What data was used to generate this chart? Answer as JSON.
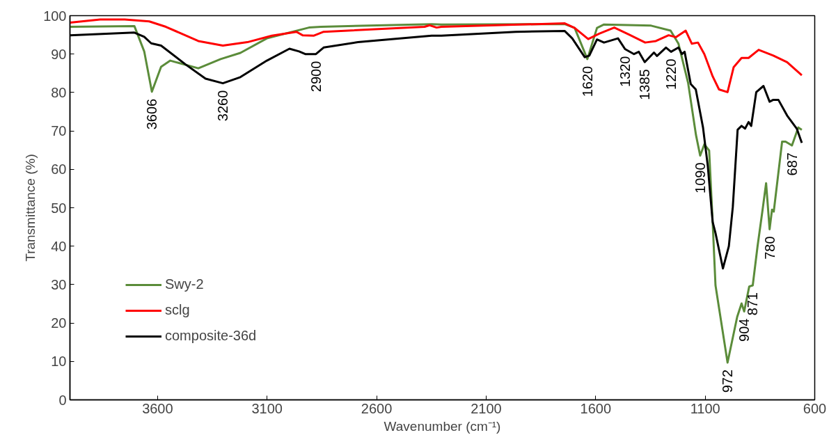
{
  "chart_data": {
    "type": "line",
    "xlabel": "Wavenumber (cm⁻¹)",
    "ylabel": "Transmittance (%)",
    "xlim": [
      4000,
      600
    ],
    "xticks": [
      3600,
      3100,
      2600,
      2100,
      1600,
      1100,
      600
    ],
    "ylim": [
      0,
      100
    ],
    "yticks": [
      0,
      10,
      20,
      30,
      40,
      50,
      60,
      70,
      80,
      90,
      100
    ],
    "grid": false,
    "legend": "bottom left",
    "marker": "none",
    "line_style": "solid",
    "series": [
      {
        "name": "Swy-2",
        "color": "#5b8c3a",
        "x": [
          4000,
          3706,
          3661,
          3626,
          3584,
          3542,
          3414,
          3312,
          3222,
          3101,
          2909,
          2854,
          2349,
          2304,
          1741,
          1696,
          1638,
          1594,
          1562,
          1347,
          1258,
          1222,
          1178,
          1142,
          1123,
          1104,
          1082,
          1066,
          1053,
          998,
          954,
          934,
          922,
          899,
          883,
          861,
          838,
          822,
          806,
          795,
          787,
          749,
          733,
          704,
          675,
          659
        ],
        "values": [
          97.1,
          97.3,
          90.7,
          80.2,
          86.7,
          88.3,
          86.3,
          88.7,
          90.3,
          94.1,
          96.9,
          97.1,
          97.8,
          97.7,
          97.8,
          96.8,
          88.7,
          96.8,
          97.7,
          97.4,
          96.1,
          92.7,
          82.5,
          68.9,
          63.6,
          66.5,
          64.9,
          46.3,
          29.8,
          9.7,
          21.6,
          25.1,
          23.0,
          29.5,
          29.8,
          40.0,
          49.5,
          56.4,
          44.4,
          49.5,
          49.0,
          67.2,
          67.2,
          66.2,
          70.9,
          70.3
        ]
      },
      {
        "name": "sclg",
        "color": "#ff0000",
        "x": [
          4000,
          3862,
          3750,
          3638,
          3562,
          3414,
          3302,
          3190,
          3078,
          2966,
          2938,
          2886,
          2842,
          2381,
          2358,
          2326,
          2304,
          1741,
          1696,
          1634,
          1584,
          1515,
          1448,
          1374,
          1325,
          1267,
          1234,
          1189,
          1161,
          1133,
          1104,
          1066,
          1037,
          998,
          970,
          934,
          902,
          856,
          789,
          726,
          659
        ],
        "values": [
          98.2,
          99.0,
          99.0,
          98.5,
          97.1,
          93.4,
          92.2,
          93.1,
          94.8,
          95.8,
          94.9,
          94.8,
          95.8,
          97.1,
          97.5,
          96.9,
          97.1,
          98.0,
          96.8,
          93.9,
          95.3,
          96.9,
          95.1,
          93.0,
          93.4,
          94.9,
          94.4,
          96.1,
          92.7,
          93.0,
          90.0,
          84.2,
          80.8,
          80.1,
          86.6,
          89.0,
          89.0,
          91.1,
          89.6,
          87.9,
          84.5
        ]
      },
      {
        "name": "composite-36d",
        "color": "#000000",
        "x": [
          4000,
          3706,
          3661,
          3629,
          3584,
          3472,
          3381,
          3302,
          3222,
          3101,
          2998,
          2954,
          2926,
          2877,
          2842,
          2685,
          2349,
          2304,
          1965,
          1741,
          1707,
          1650,
          1629,
          1594,
          1562,
          1498,
          1466,
          1425,
          1403,
          1376,
          1334,
          1320,
          1279,
          1256,
          1222,
          1206,
          1194,
          1166,
          1143,
          1110,
          1088,
          1066,
          1053,
          1019,
          992,
          974,
          952,
          934,
          918,
          902,
          890,
          867,
          834,
          806,
          789,
          766,
          726,
          682,
          659
        ],
        "values": [
          94.9,
          95.6,
          94.5,
          92.8,
          92.2,
          87.3,
          83.6,
          82.4,
          84.0,
          88.3,
          91.4,
          90.7,
          90.0,
          90.0,
          91.7,
          93.1,
          94.8,
          94.8,
          95.8,
          96.0,
          94.1,
          89.2,
          89.6,
          93.8,
          93.0,
          94.1,
          91.3,
          90.0,
          90.6,
          87.9,
          90.4,
          89.5,
          91.7,
          90.6,
          91.7,
          90.0,
          90.6,
          82.2,
          80.8,
          70.9,
          60.8,
          46.3,
          43.4,
          34.2,
          40.0,
          50.2,
          70.3,
          71.3,
          70.6,
          72.3,
          71.3,
          80.1,
          81.7,
          77.6,
          78.1,
          78.1,
          74.0,
          70.6,
          66.9
        ]
      }
    ],
    "annotations": [
      {
        "text": "3606",
        "x": 3626,
        "y": 80.2
      },
      {
        "text": "3260",
        "x": 3302,
        "y": 82.4
      },
      {
        "text": "2900",
        "x": 2877,
        "y": 90.0
      },
      {
        "text": "1620",
        "x": 1638,
        "y": 88.7
      },
      {
        "text": "1320",
        "x": 1466,
        "y": 91.3
      },
      {
        "text": "1385",
        "x": 1376,
        "y": 87.9
      },
      {
        "text": "1220",
        "x": 1256,
        "y": 90.6
      },
      {
        "text": "1090",
        "x": 1123,
        "y": 63.6
      },
      {
        "text": "687",
        "x": 704,
        "y": 66.2
      },
      {
        "text": "780",
        "x": 806,
        "y": 44.4
      },
      {
        "text": "871",
        "x": 883,
        "y": 29.8
      },
      {
        "text": "904",
        "x": 922,
        "y": 23.0
      },
      {
        "text": "972",
        "x": 998,
        "y": 9.7
      }
    ]
  }
}
